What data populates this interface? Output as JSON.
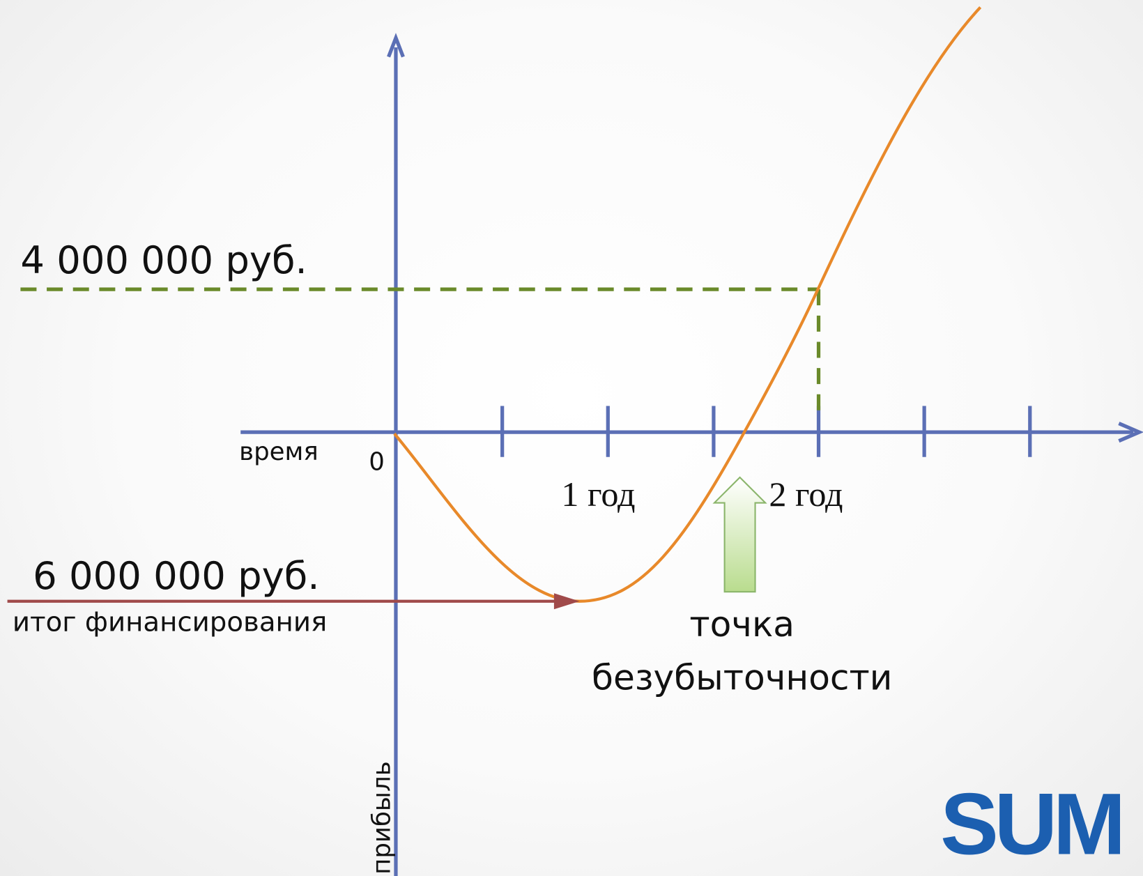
{
  "labels": {
    "profit_level": "4 000 000 руб.",
    "time_axis": "время",
    "origin": "0",
    "year_1": "1 год",
    "year_2": "2 год",
    "funding_amount": "6 000 000 руб.",
    "funding_caption": "итог финансирования",
    "breakeven_line1": "точка",
    "breakeven_line2": "безубыточности",
    "profit_axis": "прибыль",
    "logo": "SUM"
  }
}
